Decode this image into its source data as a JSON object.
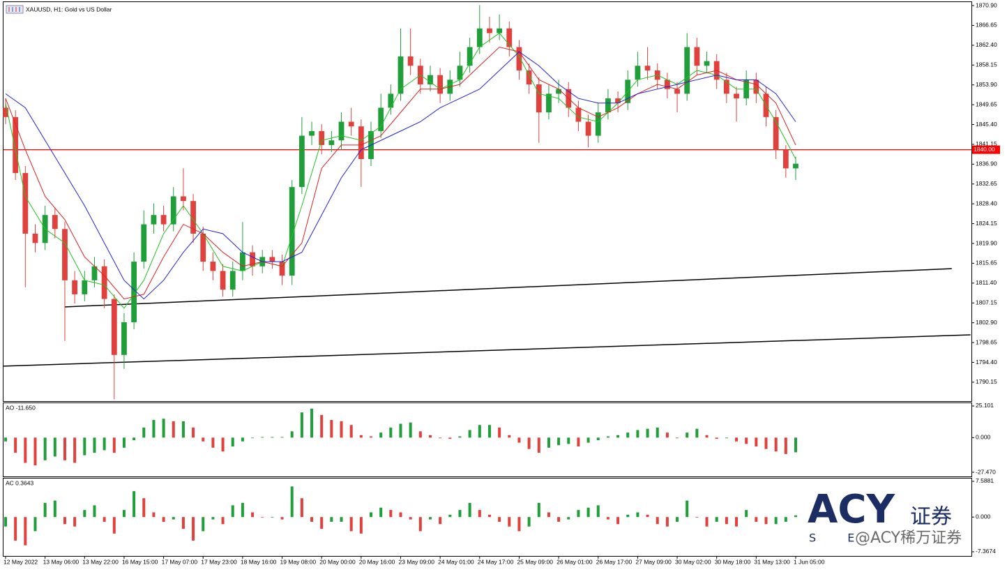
{
  "chart_data": [
    {
      "type": "candlestick",
      "title": "XAUUSD, H1:  Gold vs US Dollar",
      "categories": [
        "12 May 2022",
        null,
        null,
        null,
        "13 May 06:00",
        null,
        null,
        null,
        "13 May 22:00",
        null,
        null,
        null,
        "16 May 15:00",
        null,
        null,
        null,
        "17 May 07:00",
        null,
        null,
        null,
        "17 May 23:00",
        null,
        null,
        null,
        "18 May 16:00",
        null,
        null,
        null,
        "19 May 08:00",
        null,
        null,
        null,
        "20 May 00:00",
        null,
        null,
        null,
        "20 May 16:00",
        null,
        null,
        null,
        "23 May 09:00",
        null,
        null,
        null,
        "24 May 01:00",
        null,
        null,
        null,
        "24 May 17:00",
        null,
        null,
        null,
        "25 May 09:00",
        null,
        null,
        null,
        "26 May 01:00",
        null,
        null,
        null,
        "26 May 17:00",
        null,
        null,
        null,
        "27 May 09:00",
        null,
        null,
        null,
        "30 May 02:00",
        null,
        null,
        null,
        "30 May 18:00",
        null,
        null,
        null,
        "31 May 13:00",
        null,
        null,
        null,
        "1 Jun 05:00"
      ],
      "open": [
        1849,
        1847,
        1835,
        1822,
        1820,
        1826,
        1823,
        1812,
        1809,
        1812,
        1815,
        1808,
        1796,
        1803,
        1816,
        1824,
        1826,
        1824,
        1830,
        1829,
        1822,
        1816,
        1814,
        1810,
        1814,
        1818,
        1815,
        1817,
        1816,
        1813,
        1832,
        1843,
        1844,
        1841,
        1842,
        1846,
        1845,
        1838,
        1844,
        1849,
        1852,
        1860,
        1858,
        1854,
        1856,
        1852,
        1855,
        1858,
        1862,
        1866,
        1865,
        1866,
        1862,
        1857,
        1854,
        1848,
        1852,
        1853,
        1849,
        1846,
        1843,
        1848,
        1851,
        1850,
        1855,
        1858,
        1857,
        1855,
        1853,
        1852,
        1862,
        1858,
        1859,
        1855,
        1852,
        1851,
        1855,
        1852,
        1847,
        1840,
        1836
      ],
      "high": [
        1851,
        1848.5,
        1836.5,
        1824,
        1828,
        1827.5,
        1824.5,
        1814,
        1814,
        1817,
        1816.5,
        1809,
        1805,
        1818,
        1827,
        1828.5,
        1828,
        1832,
        1836,
        1830.5,
        1823.5,
        1818,
        1815.5,
        1816,
        1824.5,
        1819.5,
        1818.5,
        1818.5,
        1817.5,
        1833.5,
        1847,
        1846,
        1845.5,
        1844,
        1848,
        1849,
        1846.5,
        1846,
        1852,
        1854,
        1866,
        1866,
        1859.5,
        1858,
        1857.5,
        1857,
        1861,
        1864,
        1871,
        1868.5,
        1869,
        1867.5,
        1863.5,
        1858.5,
        1855.5,
        1854,
        1855,
        1854.5,
        1850.5,
        1847.5,
        1850,
        1853,
        1852.5,
        1857,
        1861,
        1862,
        1858.5,
        1856.5,
        1854.5,
        1865,
        1864,
        1861,
        1860.5,
        1856.5,
        1853.5,
        1857,
        1856.5,
        1853.5,
        1848.5,
        1841,
        1838.5
      ],
      "low": [
        1845.5,
        1833.5,
        1810.5,
        1818,
        1818.5,
        1821,
        1799,
        1807,
        1807.5,
        1810.5,
        1806,
        1786.5,
        1793,
        1801.5,
        1814.5,
        1822,
        1822.5,
        1822.5,
        1827,
        1820,
        1814,
        1812,
        1808.5,
        1808.5,
        1812,
        1813,
        1813.5,
        1814.5,
        1811,
        1811,
        1830.5,
        1841,
        1839,
        1839.5,
        1840,
        1843,
        1832,
        1836.5,
        1842.5,
        1847.5,
        1850.5,
        1856,
        1852,
        1852.5,
        1850,
        1850.5,
        1853.5,
        1856.5,
        1860.5,
        1863,
        1863.5,
        1860,
        1855,
        1852,
        1841.5,
        1846.5,
        1850,
        1847,
        1844,
        1840.5,
        1841.5,
        1846.5,
        1848,
        1848.5,
        1853.5,
        1855,
        1853,
        1851,
        1848,
        1850.5,
        1856,
        1856.5,
        1853,
        1850,
        1846,
        1849.5,
        1850,
        1845,
        1838,
        1834,
        1833.5
      ],
      "close": [
        1847,
        1835,
        1822,
        1820,
        1826,
        1823,
        1812,
        1809,
        1812,
        1815,
        1808,
        1796,
        1803,
        1816,
        1824,
        1826,
        1824,
        1830,
        1829,
        1822,
        1816,
        1814,
        1810,
        1814,
        1818,
        1815,
        1817,
        1816,
        1813,
        1832,
        1843,
        1844,
        1841,
        1842,
        1846,
        1845,
        1838,
        1844,
        1849,
        1852,
        1860,
        1858,
        1854,
        1856,
        1852,
        1855,
        1858,
        1862,
        1866,
        1865,
        1866,
        1862,
        1857,
        1854,
        1848,
        1852,
        1853,
        1849,
        1846,
        1843,
        1848,
        1851,
        1850,
        1855,
        1858,
        1857,
        1855,
        1853,
        1852,
        1862,
        1858,
        1859,
        1855,
        1852,
        1851,
        1855,
        1852,
        1847,
        1840,
        1836,
        1837
      ],
      "up_color": "#1f9e3a",
      "down_color": "#e0413c",
      "series": [
        {
          "color": "#1fc41f",
          "x": [
            0,
            2,
            4,
            6,
            8,
            10,
            12,
            14,
            16,
            18,
            20,
            22,
            24,
            26,
            28,
            30,
            32,
            34,
            36,
            38,
            40,
            42,
            44,
            46,
            48,
            50,
            52,
            54,
            56,
            58,
            60,
            62,
            64,
            66,
            68,
            70,
            72,
            74,
            76,
            78,
            80
          ],
          "values": [
            1850,
            1830,
            1823,
            1820,
            1812,
            1811,
            1806,
            1812,
            1822,
            1828,
            1822,
            1815,
            1814,
            1816,
            1815,
            1828,
            1842,
            1843,
            1842,
            1845,
            1853,
            1856,
            1853,
            1855,
            1862,
            1865,
            1860,
            1852,
            1851,
            1847,
            1846,
            1850,
            1855,
            1856,
            1854,
            1857,
            1856,
            1853,
            1853,
            1846,
            1838
          ]
        },
        {
          "color": "#e02020",
          "x": [
            0,
            2,
            4,
            6,
            8,
            10,
            12,
            14,
            16,
            18,
            20,
            22,
            24,
            26,
            28,
            30,
            32,
            34,
            36,
            38,
            40,
            42,
            44,
            46,
            48,
            50,
            52,
            54,
            56,
            58,
            60,
            62,
            64,
            66,
            68,
            70,
            72,
            74,
            76,
            78,
            80
          ],
          "values": [
            1851,
            1840,
            1830,
            1825,
            1817,
            1813,
            1808,
            1809,
            1817,
            1824,
            1822,
            1818,
            1815,
            1816,
            1815,
            1820,
            1836,
            1841,
            1841,
            1843,
            1848,
            1853,
            1853,
            1854,
            1858,
            1862,
            1861,
            1855,
            1853,
            1849,
            1847,
            1849,
            1852,
            1854,
            1853,
            1856,
            1857,
            1855,
            1854,
            1850,
            1841
          ]
        },
        {
          "color": "#2020e0",
          "x": [
            0,
            2,
            4,
            6,
            8,
            10,
            12,
            14,
            16,
            18,
            20,
            22,
            24,
            26,
            28,
            30,
            32,
            34,
            36,
            38,
            40,
            42,
            44,
            46,
            48,
            50,
            52,
            54,
            56,
            58,
            60,
            62,
            64,
            66,
            68,
            70,
            72,
            74,
            76,
            78,
            80
          ],
          "values": [
            1852,
            1849,
            1842,
            1835,
            1828,
            1820,
            1812,
            1808,
            1812,
            1818,
            1823,
            1822,
            1818,
            1816,
            1816,
            1818,
            1826,
            1834,
            1840,
            1842,
            1844,
            1846,
            1849,
            1851,
            1853,
            1857,
            1861,
            1858,
            1854,
            1851,
            1850,
            1850,
            1852,
            1853,
            1854,
            1855,
            1856,
            1855,
            1855,
            1852,
            1846
          ]
        }
      ],
      "hline": {
        "value": 1840,
        "label": "1840.00",
        "color": "#ff0000"
      },
      "trend_lines": [
        {
          "x": [
            6,
            95.8
          ],
          "y": [
            1806.3,
            1814.5
          ]
        },
        {
          "x": [
            -0.2,
            97.7
          ],
          "y": [
            1793.6,
            1800.3
          ]
        }
      ],
      "ylim": [
        1786.1,
        1871.65
      ],
      "yticks": [
        {
          "value": 1870.9,
          "label": "1870.90"
        },
        1866.65,
        {
          "value": 1862.4,
          "label": "1862.40"
        },
        1858.15,
        {
          "value": 1853.9,
          "label": "1853.90"
        },
        1849.65,
        {
          "value": 1845.4,
          "label": "1845.40"
        },
        1841.15,
        {
          "value": 1836.9,
          "label": "1836.90"
        },
        1832.65,
        {
          "value": 1828.4,
          "label": "1828.40"
        },
        1824.15,
        {
          "value": 1819.9,
          "label": "1819.90"
        },
        1815.65,
        {
          "value": 1811.4,
          "label": "1811.40"
        },
        1807.15,
        {
          "value": 1802.9,
          "label": "1802.90"
        },
        1798.65,
        {
          "value": 1794.4,
          "label": "1794.40"
        },
        1790.15
      ]
    },
    {
      "type": "bar",
      "label": "AO -11.650",
      "up_color": "#1f9e3a",
      "down_color": "#e0413c",
      "values": [
        -3,
        -12,
        -20,
        -22,
        -18,
        -15,
        -18,
        -20,
        -14,
        -12,
        -10,
        -12,
        -8,
        -2,
        8,
        14,
        15,
        13,
        13,
        8,
        -3,
        -8,
        -11,
        -7,
        -3,
        0,
        0.5,
        0.5,
        0.5,
        5,
        20,
        23,
        18,
        14,
        13,
        10,
        2,
        1,
        4,
        8,
        11,
        12,
        5,
        2,
        -0.5,
        -1,
        1,
        6,
        10,
        10,
        8,
        2,
        -4,
        -9,
        -12,
        -8,
        -6,
        -5,
        -7,
        -4,
        -2,
        1,
        2,
        4,
        6,
        7,
        8,
        4,
        -0.5,
        4,
        7,
        2,
        -1,
        -0.5,
        -3,
        -5,
        -7,
        -9,
        -11,
        -13,
        -11.65
      ],
      "ylim": [
        -30.79,
        27.31
      ],
      "yticks": [
        25.101,
        {
          "value": 0,
          "label": "0.000"
        },
        {
          "value": -27.47,
          "label": "-27.470"
        }
      ]
    },
    {
      "type": "bar",
      "label": "AC 0.3643",
      "up_color": "#1f9e3a",
      "down_color": "#e0413c",
      "values": [
        -2,
        -5,
        -6,
        -3,
        3,
        3.5,
        -1.5,
        -2,
        1.5,
        2.5,
        -1,
        -3.5,
        1.5,
        5.5,
        4,
        1,
        -1,
        -0.5,
        -2.5,
        -5,
        -3,
        -0.5,
        -1.5,
        2.5,
        3,
        1,
        0,
        0,
        -0.5,
        6.5,
        4,
        -1,
        -2.5,
        -1,
        -1,
        -3,
        -3.5,
        1,
        2,
        1.5,
        1,
        -0.5,
        -3,
        -0.5,
        -1.5,
        0.5,
        1.5,
        3,
        1.5,
        0.5,
        -1,
        -2,
        -3,
        -2,
        3,
        1,
        -1,
        -0.5,
        1.5,
        2,
        2.5,
        -0.5,
        -1.5,
        0.5,
        1,
        0.5,
        -1.5,
        -2,
        -1,
        3.5,
        0,
        -2,
        -1,
        -1.5,
        -2,
        1.5,
        -1,
        -1.5,
        -1.5,
        -1,
        0.3643
      ],
      "ylim": [
        -8.256,
        8.18
      ],
      "yticks": [
        7.5881,
        {
          "value": 0,
          "label": "0.000"
        },
        -7.3674
      ]
    }
  ],
  "watermark": {
    "logo": "ACY",
    "logo_cn": "证券",
    "sub": "S E",
    "handle": "@ACY稀万证券"
  }
}
